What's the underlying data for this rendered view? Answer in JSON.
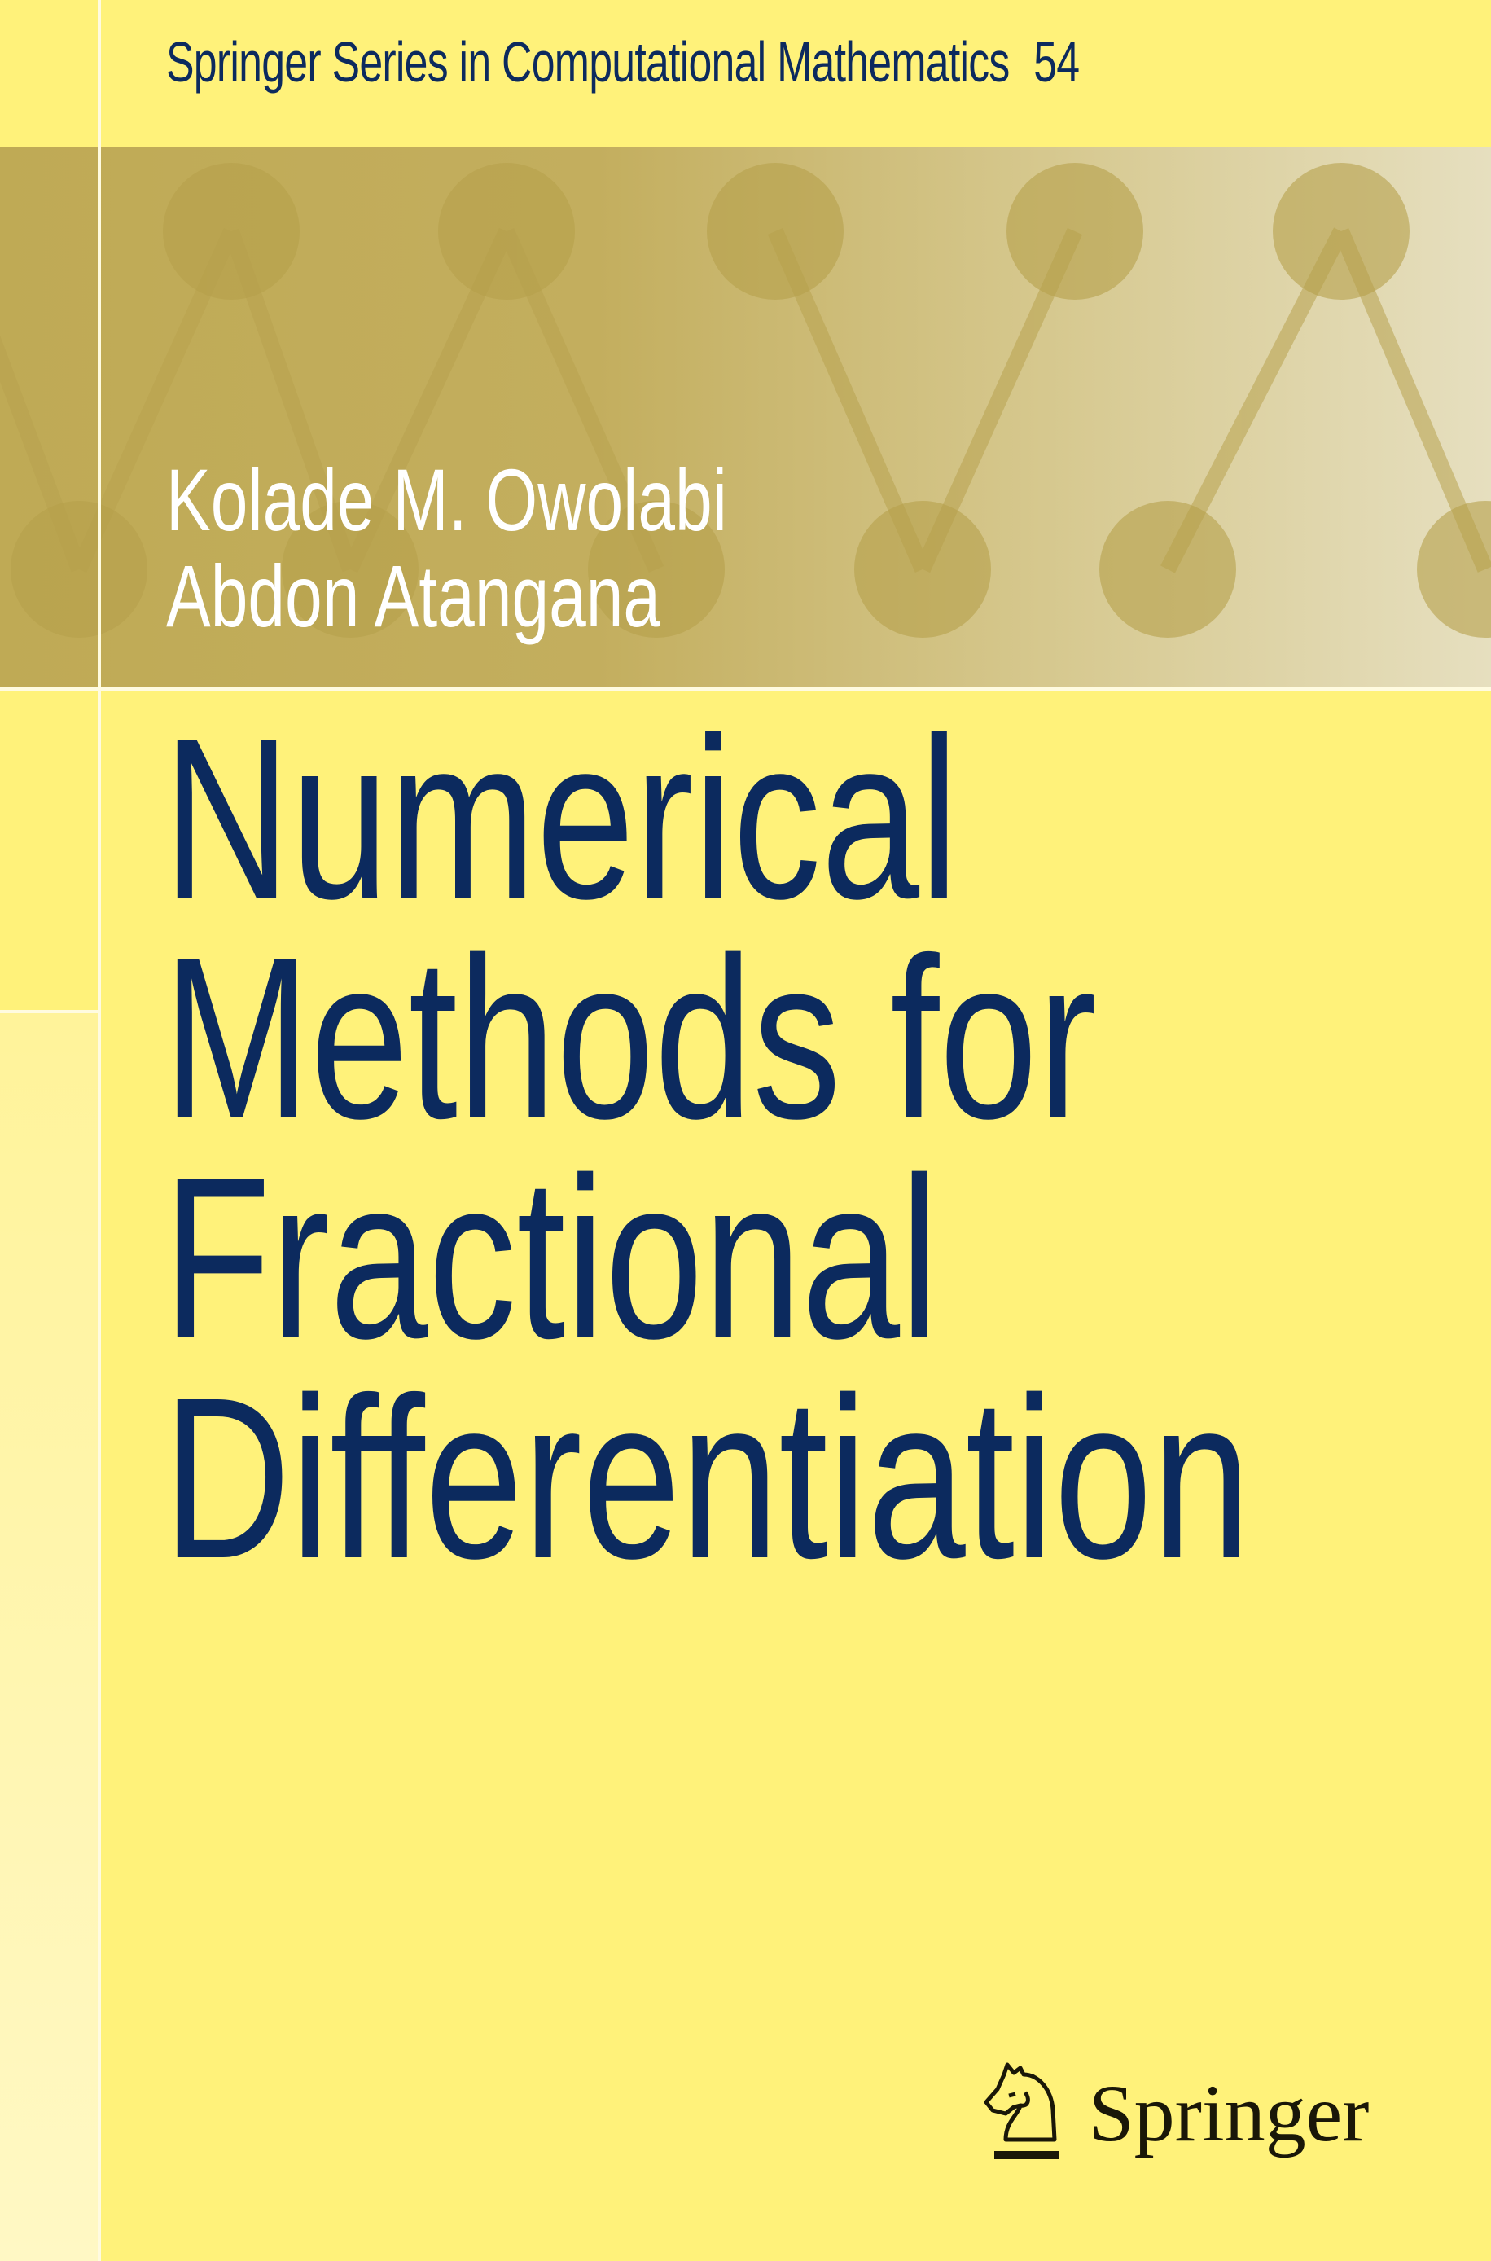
{
  "series": {
    "name": "Springer Series in Computational Mathematics",
    "volume": "54"
  },
  "authors": [
    "Kolade M. Owolabi",
    "Abdon Atangana"
  ],
  "title_lines": [
    "Numerical",
    "Methods for",
    "Fractional",
    "Differentiation"
  ],
  "publisher": {
    "name": "Springer",
    "logo_icon": "knight-horse-icon"
  },
  "colors": {
    "background": "#fff27a",
    "title": "#0c2a5e",
    "band": "#bfaa55",
    "authors": "#ffffff"
  }
}
